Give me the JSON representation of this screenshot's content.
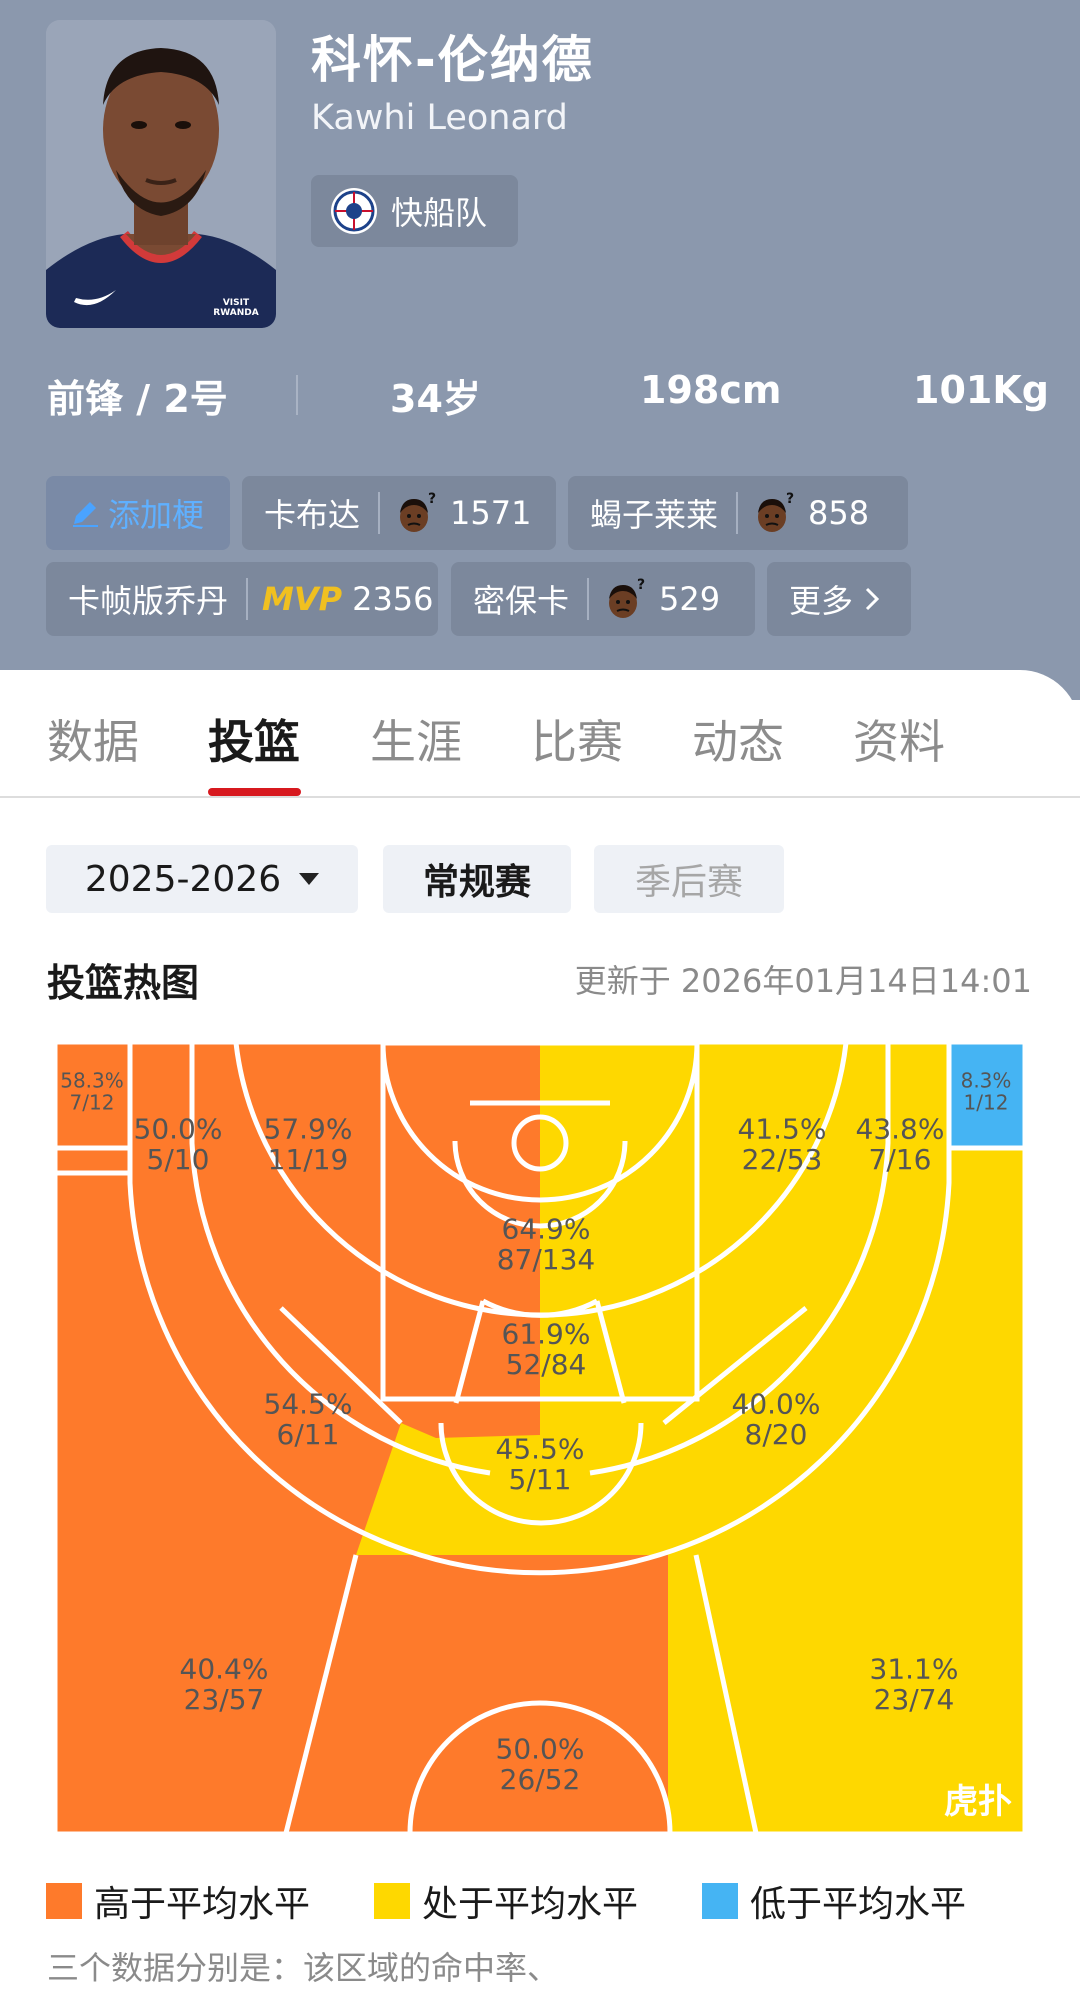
{
  "player": {
    "name_cn": "科怀-伦纳德",
    "name_en": "Kawhi Leonard",
    "team": "快船队",
    "position": "前锋 / 2号",
    "age": "34岁",
    "height": "198cm",
    "weight": "101Kg",
    "jersey_text": "VISIT RWANDA"
  },
  "memes": {
    "add_label": "添加梗",
    "items": [
      {
        "label": "卡布达",
        "count": "1571",
        "icon": "confused-face-icon"
      },
      {
        "label": "蝎子莱莱",
        "count": "858",
        "icon": "confused-face-icon"
      },
      {
        "label": "卡帧版乔丹",
        "count": "2356",
        "icon": "mvp-icon",
        "badge": "MVP"
      },
      {
        "label": "密保卡",
        "count": "529",
        "icon": "confused-face-icon"
      }
    ],
    "more_label": "更多"
  },
  "tabs": [
    {
      "label": "数据",
      "active": false
    },
    {
      "label": "投篮",
      "active": true
    },
    {
      "label": "生涯",
      "active": false
    },
    {
      "label": "比赛",
      "active": false
    },
    {
      "label": "动态",
      "active": false
    },
    {
      "label": "资料",
      "active": false
    }
  ],
  "filters": {
    "season": "2025-2026",
    "regular": "常规赛",
    "playoffs": "季后赛"
  },
  "heatmap": {
    "title": "投篮热图",
    "updated": "更新于 2026年01月14日14:01",
    "watermark": "虎扑",
    "colors": {
      "above": "#fe7a2b",
      "average": "#fed800",
      "below": "#45b4f3",
      "line": "#ffffff"
    },
    "zones": [
      {
        "id": "left-corner-three",
        "pct": "58.3%",
        "made_att": "7/12",
        "level": "above"
      },
      {
        "id": "left-baseline-mid",
        "pct": "50.0%",
        "made_att": "5/10",
        "level": "above"
      },
      {
        "id": "left-short-mid",
        "pct": "57.9%",
        "made_att": "11/19",
        "level": "above"
      },
      {
        "id": "restricted-area",
        "pct": "64.9%",
        "made_att": "87/134",
        "level": "above"
      },
      {
        "id": "paint-non-ra",
        "pct": "61.9%",
        "made_att": "52/84",
        "level": "above"
      },
      {
        "id": "right-short-mid",
        "pct": "41.5%",
        "made_att": "22/53",
        "level": "average"
      },
      {
        "id": "right-baseline-mid",
        "pct": "43.8%",
        "made_att": "7/16",
        "level": "average"
      },
      {
        "id": "right-corner-three",
        "pct": "8.3%",
        "made_att": "1/12",
        "level": "below"
      },
      {
        "id": "left-elbow-mid",
        "pct": "54.5%",
        "made_att": "6/11",
        "level": "above"
      },
      {
        "id": "top-key-mid",
        "pct": "45.5%",
        "made_att": "5/11",
        "level": "average"
      },
      {
        "id": "right-elbow-mid",
        "pct": "40.0%",
        "made_att": "8/20",
        "level": "average"
      },
      {
        "id": "left-wing-three",
        "pct": "40.4%",
        "made_att": "23/57",
        "level": "above"
      },
      {
        "id": "top-three",
        "pct": "50.0%",
        "made_att": "26/52",
        "level": "above"
      },
      {
        "id": "right-wing-three",
        "pct": "31.1%",
        "made_att": "23/74",
        "level": "average"
      }
    ]
  },
  "legend": [
    {
      "label": "高于平均水平",
      "color": "#fe7a2b"
    },
    {
      "label": "处于平均水平",
      "color": "#fed800"
    },
    {
      "label": "低于平均水平",
      "color": "#45b4f3"
    }
  ],
  "note": "三个数据分别是：该区域的命中率、"
}
